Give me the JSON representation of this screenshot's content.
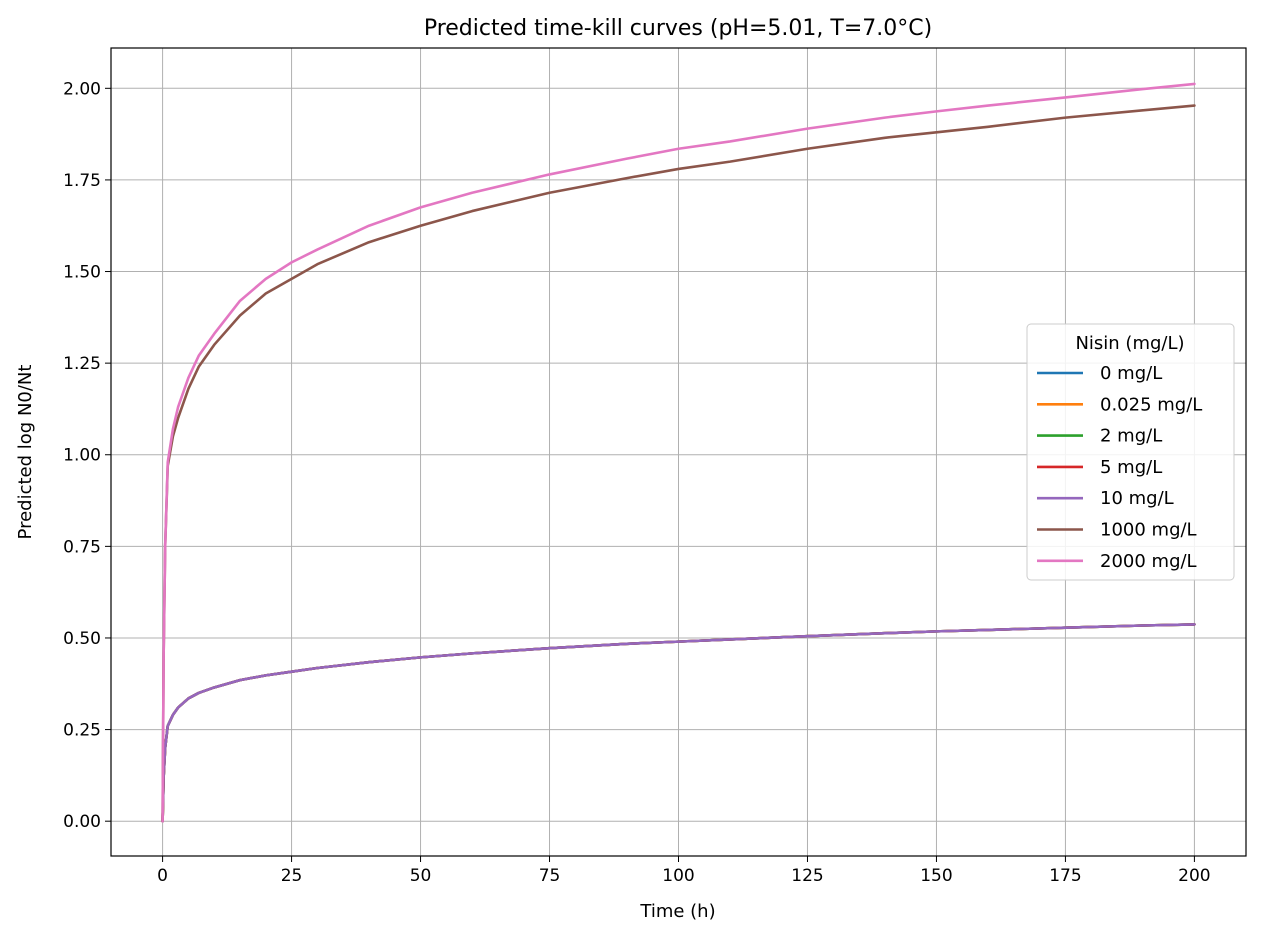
{
  "chart_data": {
    "type": "line",
    "title": "Predicted time-kill curves (pH=5.01, T=7.0°C)",
    "xlabel": "Time (h)",
    "ylabel": "Predicted log N0/Nt",
    "xlim": [
      -10,
      210
    ],
    "ylim": [
      -0.095,
      2.11
    ],
    "xticks": [
      0,
      25,
      50,
      75,
      100,
      125,
      150,
      175,
      200
    ],
    "yticks": [
      0.0,
      0.25,
      0.5,
      0.75,
      1.0,
      1.25,
      1.5,
      1.75,
      2.0
    ],
    "ytick_labels": [
      "0.00",
      "0.25",
      "0.50",
      "0.75",
      "1.00",
      "1.25",
      "1.50",
      "1.75",
      "2.00"
    ],
    "grid": true,
    "legend_title": "Nisin (mg/L)",
    "legend_position": "center-right",
    "x": [
      0,
      0.2,
      0.5,
      1,
      2,
      3,
      5,
      7,
      10,
      15,
      20,
      25,
      30,
      40,
      50,
      60,
      75,
      90,
      100,
      110,
      125,
      140,
      150,
      160,
      175,
      190,
      200
    ],
    "series": [
      {
        "name": "0 mg/L",
        "color": "#1f77b4",
        "values": [
          0.0,
          0.12,
          0.2,
          0.26,
          0.29,
          0.31,
          0.335,
          0.35,
          0.365,
          0.385,
          0.398,
          0.408,
          0.418,
          0.434,
          0.447,
          0.458,
          0.472,
          0.484,
          0.49,
          0.496,
          0.505,
          0.513,
          0.518,
          0.522,
          0.528,
          0.534,
          0.537
        ]
      },
      {
        "name": "0.025 mg/L",
        "color": "#ff7f0e",
        "values": [
          0.0,
          0.12,
          0.2,
          0.26,
          0.29,
          0.31,
          0.335,
          0.35,
          0.365,
          0.385,
          0.398,
          0.408,
          0.418,
          0.434,
          0.447,
          0.458,
          0.472,
          0.484,
          0.49,
          0.496,
          0.505,
          0.513,
          0.518,
          0.522,
          0.528,
          0.534,
          0.537
        ]
      },
      {
        "name": "2 mg/L",
        "color": "#2ca02c",
        "values": [
          0.0,
          0.12,
          0.2,
          0.26,
          0.29,
          0.31,
          0.335,
          0.35,
          0.365,
          0.385,
          0.398,
          0.408,
          0.418,
          0.434,
          0.447,
          0.458,
          0.472,
          0.484,
          0.49,
          0.496,
          0.505,
          0.513,
          0.518,
          0.522,
          0.528,
          0.534,
          0.537
        ]
      },
      {
        "name": "5 mg/L",
        "color": "#d62728",
        "values": [
          0.0,
          0.12,
          0.2,
          0.26,
          0.29,
          0.31,
          0.335,
          0.35,
          0.365,
          0.385,
          0.398,
          0.408,
          0.418,
          0.434,
          0.447,
          0.458,
          0.472,
          0.484,
          0.49,
          0.496,
          0.505,
          0.513,
          0.518,
          0.522,
          0.528,
          0.534,
          0.537
        ]
      },
      {
        "name": "10 mg/L",
        "color": "#9467bd",
        "values": [
          0.0,
          0.12,
          0.2,
          0.26,
          0.29,
          0.31,
          0.335,
          0.35,
          0.365,
          0.385,
          0.398,
          0.408,
          0.418,
          0.434,
          0.447,
          0.458,
          0.472,
          0.484,
          0.49,
          0.496,
          0.505,
          0.513,
          0.518,
          0.522,
          0.528,
          0.534,
          0.537
        ]
      },
      {
        "name": "1000 mg/L",
        "color": "#8c564b",
        "values": [
          0.0,
          0.45,
          0.75,
          0.97,
          1.05,
          1.1,
          1.18,
          1.24,
          1.3,
          1.38,
          1.44,
          1.48,
          1.52,
          1.58,
          1.625,
          1.665,
          1.715,
          1.755,
          1.78,
          1.8,
          1.835,
          1.865,
          1.88,
          1.895,
          1.92,
          1.94,
          1.953
        ]
      },
      {
        "name": "2000 mg/L",
        "color": "#e377c2",
        "values": [
          0.0,
          0.45,
          0.75,
          0.98,
          1.07,
          1.13,
          1.21,
          1.27,
          1.33,
          1.42,
          1.48,
          1.525,
          1.56,
          1.625,
          1.675,
          1.715,
          1.765,
          1.808,
          1.835,
          1.855,
          1.89,
          1.92,
          1.937,
          1.953,
          1.975,
          1.998,
          2.012
        ]
      }
    ]
  }
}
